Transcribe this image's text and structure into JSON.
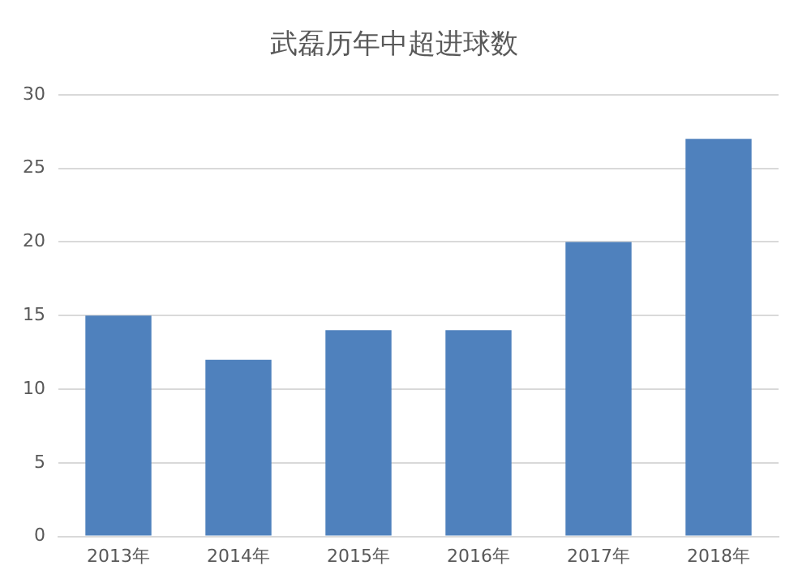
{
  "chart_data": {
    "type": "bar",
    "title": "武磊历年中超进球数",
    "categories": [
      "2013年",
      "2014年",
      "2015年",
      "2016年",
      "2017年",
      "2018年"
    ],
    "values": [
      15,
      12,
      14,
      14,
      20,
      27
    ],
    "color": "#4f81bd",
    "ylim": [
      0,
      30
    ],
    "yticks": [
      0,
      5,
      10,
      15,
      20,
      25,
      30
    ],
    "grid": "y",
    "legend": false
  }
}
